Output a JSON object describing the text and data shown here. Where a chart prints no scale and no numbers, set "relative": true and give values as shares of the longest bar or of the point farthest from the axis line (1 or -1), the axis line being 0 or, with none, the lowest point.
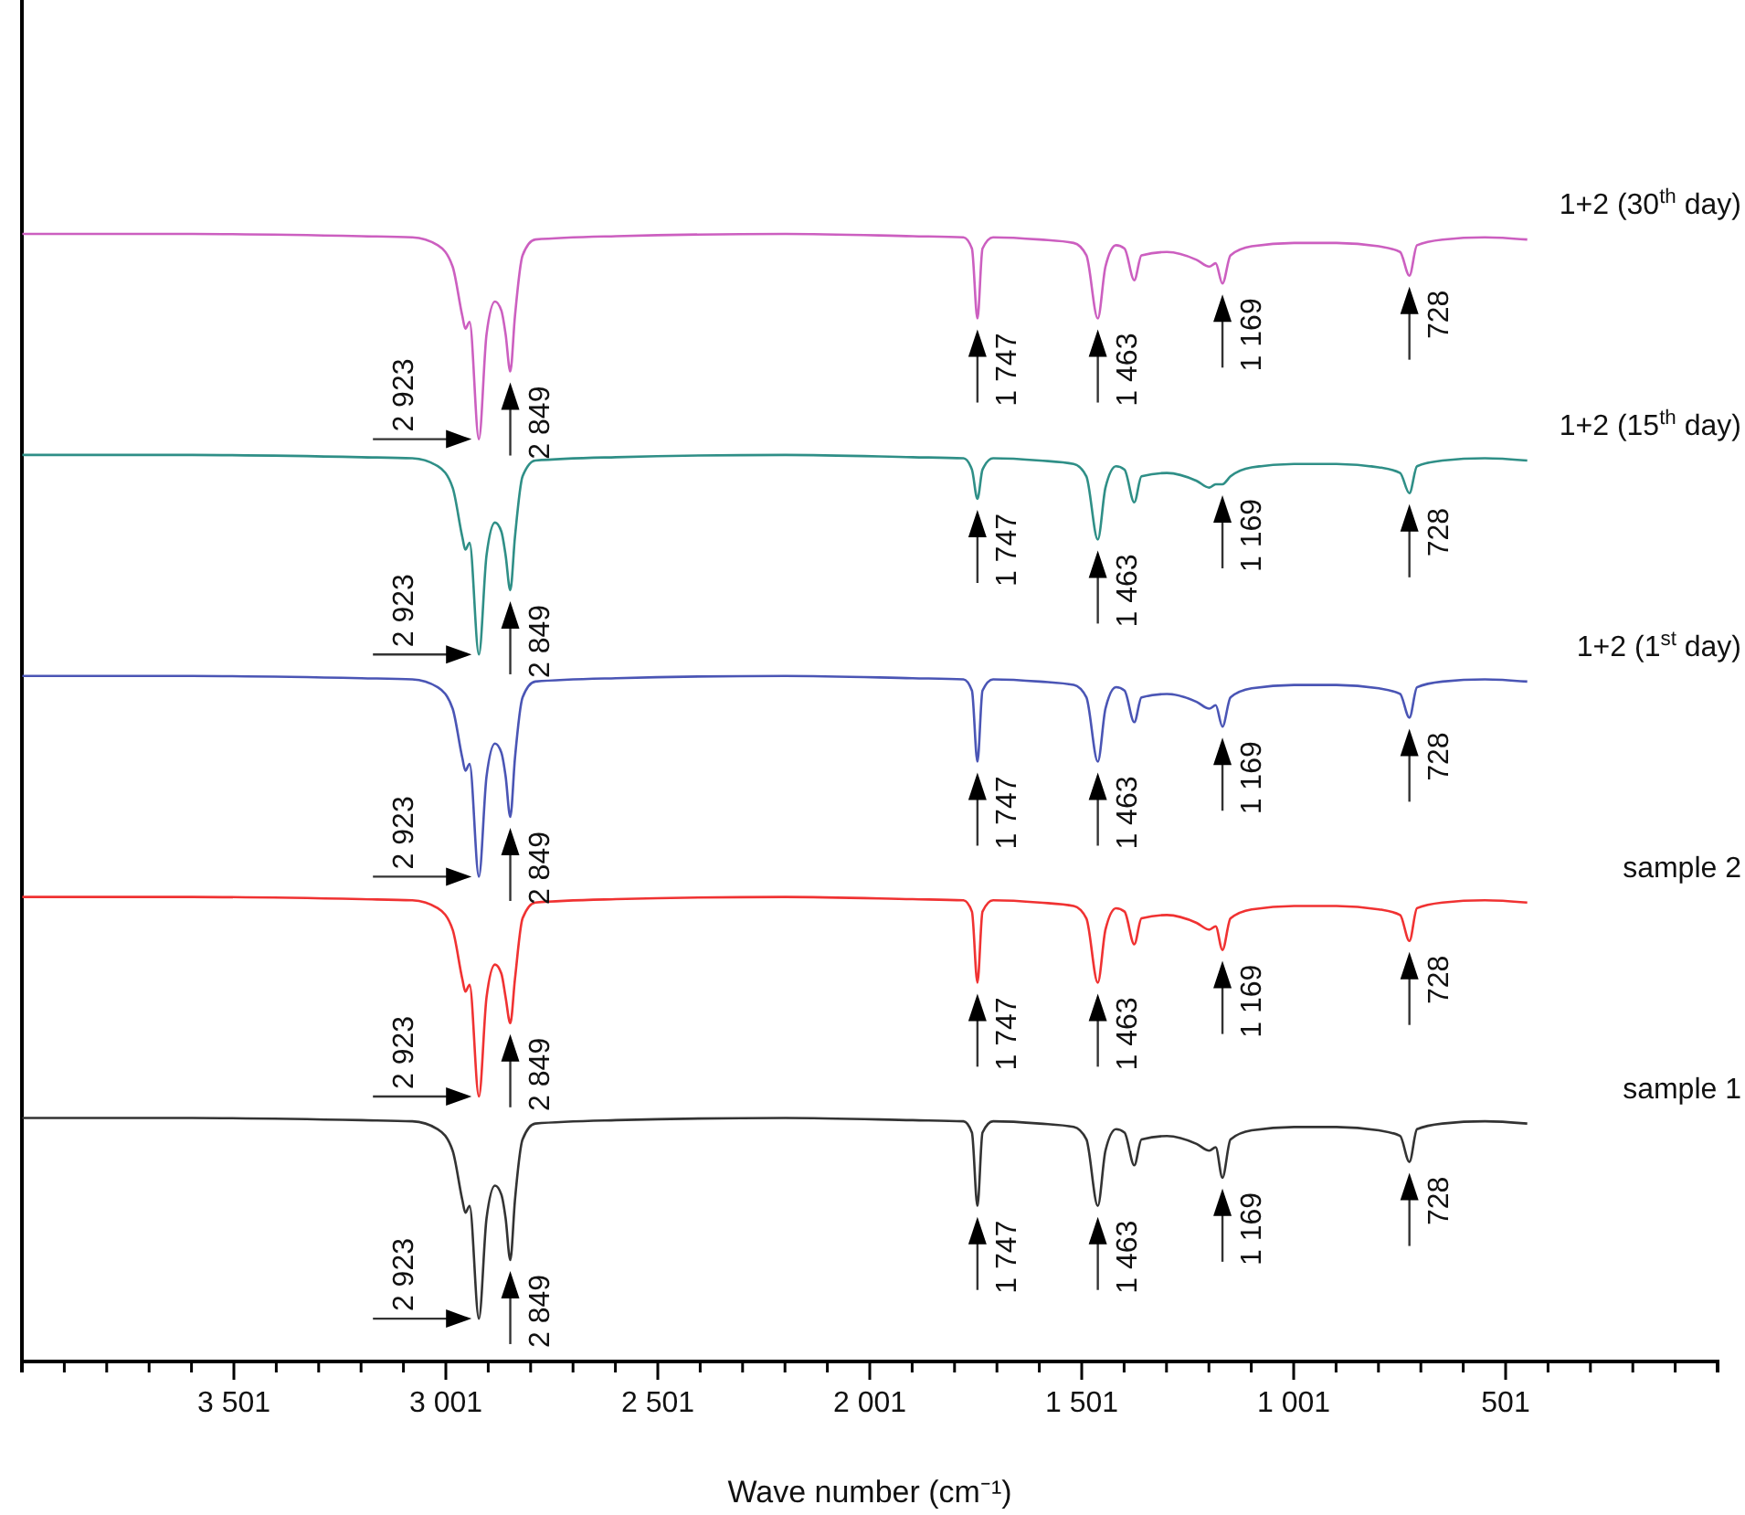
{
  "chart_data": {
    "type": "line",
    "xlabel": "Wave number (cm⁻¹)",
    "relative": true,
    "xlim": [
      4001,
      1
    ],
    "xticks": [
      {
        "value": 3901,
        "label": null
      },
      {
        "value": 3801,
        "label": null
      },
      {
        "value": 3701,
        "label": null
      },
      {
        "value": 3601,
        "label": null
      },
      {
        "value": 3501,
        "label": "3 501"
      },
      {
        "value": 3401,
        "label": null
      },
      {
        "value": 3301,
        "label": null
      },
      {
        "value": 3201,
        "label": null
      },
      {
        "value": 3101,
        "label": null
      },
      {
        "value": 3001,
        "label": "3 001"
      },
      {
        "value": 2901,
        "label": null
      },
      {
        "value": 2801,
        "label": null
      },
      {
        "value": 2701,
        "label": null
      },
      {
        "value": 2601,
        "label": null
      },
      {
        "value": 2501,
        "label": "2 501"
      },
      {
        "value": 2401,
        "label": null
      },
      {
        "value": 2301,
        "label": null
      },
      {
        "value": 2201,
        "label": null
      },
      {
        "value": 2101,
        "label": null
      },
      {
        "value": 2001,
        "label": "2 001"
      },
      {
        "value": 1901,
        "label": null
      },
      {
        "value": 1801,
        "label": null
      },
      {
        "value": 1701,
        "label": null
      },
      {
        "value": 1601,
        "label": null
      },
      {
        "value": 1501,
        "label": "1 501"
      },
      {
        "value": 1401,
        "label": null
      },
      {
        "value": 1301,
        "label": null
      },
      {
        "value": 1201,
        "label": null
      },
      {
        "value": 1101,
        "label": null
      },
      {
        "value": 1001,
        "label": "1 001"
      },
      {
        "value": 901,
        "label": null
      },
      {
        "value": 801,
        "label": null
      },
      {
        "value": 701,
        "label": null
      },
      {
        "value": 601,
        "label": null
      },
      {
        "value": 501,
        "label": "501"
      },
      {
        "value": 401,
        "label": null
      },
      {
        "value": 301,
        "label": null
      },
      {
        "value": 201,
        "label": null
      },
      {
        "value": 101,
        "label": null
      }
    ],
    "x": [
      4000,
      3600,
      3200,
      3080,
      3020,
      2985,
      2962,
      2955,
      2945,
      2923,
      2905,
      2885,
      2870,
      2860,
      2849,
      2838,
      2820,
      2790,
      2600,
      2200,
      1900,
      1780,
      1760,
      1747,
      1735,
      1710,
      1600,
      1520,
      1490,
      1463,
      1445,
      1420,
      1400,
      1377,
      1360,
      1300,
      1230,
      1200,
      1185,
      1169,
      1150,
      1100,
      1000,
      900,
      800,
      750,
      728,
      710,
      650,
      550,
      450
    ],
    "series": [
      {
        "name": "1+2 (30$^{th}$ day)",
        "color": "#cc5fc0",
        "values": [
          1,
          1,
          0.998,
          0.997,
          0.99,
          0.971,
          0.927,
          0.916,
          0.922,
          0.818,
          0.911,
          0.94,
          0.932,
          0.911,
          0.878,
          0.927,
          0.981,
          0.995,
          0.998,
          1,
          0.998,
          0.997,
          0.987,
          0.925,
          0.987,
          0.997,
          0.995,
          0.992,
          0.981,
          0.925,
          0.971,
          0.99,
          0.987,
          0.959,
          0.981,
          0.984,
          0.977,
          0.971,
          0.974,
          0.956,
          0.981,
          0.989,
          0.992,
          0.992,
          0.989,
          0.984,
          0.963,
          0.99,
          0.995,
          0.997,
          0.995
        ]
      },
      {
        "name": "1+2 (15$^{th}$ day)",
        "color": "#2f8f87",
        "values": [
          0.804,
          0.804,
          0.802,
          0.801,
          0.794,
          0.775,
          0.731,
          0.72,
          0.726,
          0.627,
          0.715,
          0.744,
          0.736,
          0.715,
          0.684,
          0.731,
          0.785,
          0.799,
          0.802,
          0.804,
          0.802,
          0.801,
          0.791,
          0.765,
          0.791,
          0.801,
          0.799,
          0.796,
          0.785,
          0.729,
          0.775,
          0.794,
          0.791,
          0.762,
          0.785,
          0.788,
          0.781,
          0.775,
          0.778,
          0.778,
          0.785,
          0.793,
          0.796,
          0.796,
          0.793,
          0.788,
          0.77,
          0.794,
          0.799,
          0.801,
          0.799
        ]
      },
      {
        "name": "1+2 (1$^{st}$ day)",
        "color": "#4a55b5",
        "values": [
          0.608,
          0.608,
          0.606,
          0.605,
          0.598,
          0.579,
          0.535,
          0.524,
          0.53,
          0.43,
          0.519,
          0.548,
          0.54,
          0.519,
          0.483,
          0.535,
          0.589,
          0.603,
          0.606,
          0.608,
          0.606,
          0.605,
          0.595,
          0.532,
          0.595,
          0.605,
          0.603,
          0.6,
          0.589,
          0.532,
          0.579,
          0.598,
          0.595,
          0.567,
          0.589,
          0.592,
          0.585,
          0.579,
          0.582,
          0.563,
          0.589,
          0.597,
          0.6,
          0.6,
          0.597,
          0.592,
          0.571,
          0.598,
          0.603,
          0.605,
          0.603
        ]
      },
      {
        "name": "sample 2",
        "color": "#f03232",
        "values": [
          0.412,
          0.412,
          0.41,
          0.409,
          0.402,
          0.383,
          0.339,
          0.328,
          0.334,
          0.235,
          0.323,
          0.352,
          0.344,
          0.323,
          0.3,
          0.339,
          0.393,
          0.407,
          0.41,
          0.412,
          0.41,
          0.409,
          0.399,
          0.336,
          0.399,
          0.409,
          0.407,
          0.404,
          0.393,
          0.336,
          0.383,
          0.402,
          0.399,
          0.37,
          0.393,
          0.396,
          0.389,
          0.383,
          0.386,
          0.365,
          0.393,
          0.401,
          0.404,
          0.404,
          0.401,
          0.396,
          0.373,
          0.402,
          0.407,
          0.409,
          0.407
        ]
      },
      {
        "name": "sample 1",
        "color": "#333333",
        "values": [
          0.216,
          0.216,
          0.214,
          0.213,
          0.206,
          0.187,
          0.143,
          0.132,
          0.138,
          0.038,
          0.127,
          0.156,
          0.148,
          0.127,
          0.09,
          0.143,
          0.197,
          0.211,
          0.214,
          0.216,
          0.214,
          0.213,
          0.203,
          0.138,
          0.203,
          0.213,
          0.211,
          0.208,
          0.197,
          0.138,
          0.187,
          0.206,
          0.203,
          0.174,
          0.197,
          0.2,
          0.193,
          0.187,
          0.19,
          0.163,
          0.197,
          0.205,
          0.208,
          0.208,
          0.205,
          0.2,
          0.177,
          0.206,
          0.211,
          0.213,
          0.211
        ]
      }
    ],
    "annotations": [
      {
        "text": "2 923",
        "x": 2923,
        "y": 0.818
      },
      {
        "text": "2 849",
        "x": 2849,
        "y": 0.878
      },
      {
        "text": "1 747",
        "x": 1747,
        "y": 0.925
      },
      {
        "text": "1 463",
        "x": 1463,
        "y": 0.925
      },
      {
        "text": "1 169",
        "x": 1169,
        "y": 0.956
      },
      {
        "text": "728",
        "x": 728,
        "y": 0.963
      },
      {
        "text": "2 923",
        "x": 2923,
        "y": 0.627
      },
      {
        "text": "2 849",
        "x": 2849,
        "y": 0.684
      },
      {
        "text": "1 747",
        "x": 1747,
        "y": 0.765
      },
      {
        "text": "1 463",
        "x": 1463,
        "y": 0.729
      },
      {
        "text": "1 169",
        "x": 1169,
        "y": 0.778
      },
      {
        "text": "728",
        "x": 728,
        "y": 0.77
      },
      {
        "text": "2 923",
        "x": 2923,
        "y": 0.43
      },
      {
        "text": "2 849",
        "x": 2849,
        "y": 0.483
      },
      {
        "text": "1 747",
        "x": 1747,
        "y": 0.532
      },
      {
        "text": "1 463",
        "x": 1463,
        "y": 0.532
      },
      {
        "text": "1 169",
        "x": 1169,
        "y": 0.563
      },
      {
        "text": "728",
        "x": 728,
        "y": 0.571
      },
      {
        "text": "2 923",
        "x": 2923,
        "y": 0.235
      },
      {
        "text": "2 849",
        "x": 2849,
        "y": 0.3
      },
      {
        "text": "1 747",
        "x": 1747,
        "y": 0.336
      },
      {
        "text": "1 463",
        "x": 1463,
        "y": 0.336
      },
      {
        "text": "1 169",
        "x": 1169,
        "y": 0.365
      },
      {
        "text": "728",
        "x": 728,
        "y": 0.373
      },
      {
        "text": "2 923",
        "x": 2923,
        "y": 0.038
      },
      {
        "text": "2 849",
        "x": 2849,
        "y": 0.09
      },
      {
        "text": "1 747",
        "x": 1747,
        "y": 0.138
      },
      {
        "text": "1 463",
        "x": 1463,
        "y": 0.138
      },
      {
        "text": "1 169",
        "x": 1169,
        "y": 0.163
      },
      {
        "text": "728",
        "x": 728,
        "y": 0.177
      }
    ]
  }
}
